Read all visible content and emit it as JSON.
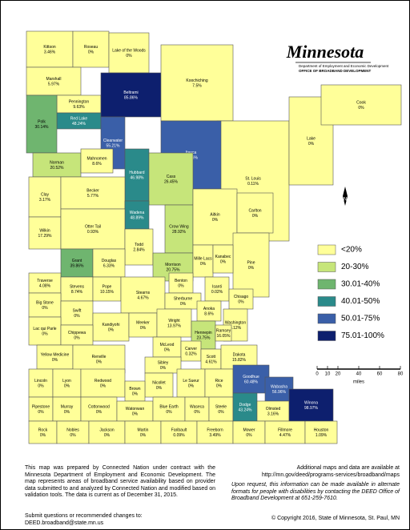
{
  "header": {
    "title": "Minnesota",
    "department": "Department of Employment and Economic Development",
    "office": "OFFICE OF BROADBAND DEVELOPMENT"
  },
  "counties": [
    {
      "name": "Kittson",
      "value": "3.46%",
      "color": "#ffff99"
    },
    {
      "name": "Roseau",
      "value": "0%",
      "color": "#ffff99"
    },
    {
      "name": "Lake of the Woods",
      "value": "0%",
      "color": "#ffff99"
    },
    {
      "name": "Marshall",
      "value": "5.97%",
      "color": "#ffff99"
    },
    {
      "name": "Pennington",
      "value": "9.63%",
      "color": "#ffff99"
    },
    {
      "name": "Red Lake",
      "value": "48.24%",
      "color": "#2a8a8a"
    },
    {
      "name": "Polk",
      "value": "30.14%",
      "color": "#6fb56f"
    },
    {
      "name": "Beltrami",
      "value": "85.86%",
      "color": "#0d1f6e"
    },
    {
      "name": "Clearwater",
      "value": "55.21%",
      "color": "#3a5fa8"
    },
    {
      "name": "Koochiching",
      "value": "7.5%",
      "color": "#ffff99"
    },
    {
      "name": "St. Louis",
      "value": "0.11%",
      "color": "#ffff99"
    },
    {
      "name": "Lake",
      "value": "0%",
      "color": "#ffff99"
    },
    {
      "name": "Cook",
      "value": "0%",
      "color": "#ffff99"
    },
    {
      "name": "Itasca",
      "value": "58.96%",
      "color": "#3a5fa8"
    },
    {
      "name": "Norman",
      "value": "20.52%",
      "color": "#c6e57a"
    },
    {
      "name": "Mahnomen",
      "value": "8.6%",
      "color": "#ffff99"
    },
    {
      "name": "Hubbard",
      "value": "46.98%",
      "color": "#2a8a8a"
    },
    {
      "name": "Cass",
      "value": "26.45%",
      "color": "#c6e57a"
    },
    {
      "name": "Clay",
      "value": "3.17%",
      "color": "#ffff99"
    },
    {
      "name": "Becker",
      "value": "5.77%",
      "color": "#ffff99"
    },
    {
      "name": "Wadena",
      "value": "48.89%",
      "color": "#2a8a8a"
    },
    {
      "name": "Crow Wing",
      "value": "28.92%",
      "color": "#c6e57a"
    },
    {
      "name": "Aitkin",
      "value": "0%",
      "color": "#ffff99"
    },
    {
      "name": "Carlton",
      "value": "0%",
      "color": "#ffff99"
    },
    {
      "name": "Wilkin",
      "value": "17.29%",
      "color": "#ffff99"
    },
    {
      "name": "Otter Tail",
      "value": "0.93%",
      "color": "#ffff99"
    },
    {
      "name": "Todd",
      "value": "2.84%",
      "color": "#ffff99"
    },
    {
      "name": "Morrison",
      "value": "20.75%",
      "color": "#c6e57a"
    },
    {
      "name": "Pine",
      "value": "0%",
      "color": "#ffff99"
    },
    {
      "name": "Grant",
      "value": "39.86%",
      "color": "#6fb56f"
    },
    {
      "name": "Douglas",
      "value": "6.33%",
      "color": "#ffff99"
    },
    {
      "name": "Mille Lacs",
      "value": "0%",
      "color": "#ffff99"
    },
    {
      "name": "Kanabec",
      "value": "0%",
      "color": "#ffff99"
    },
    {
      "name": "Traverse",
      "value": "4.08%",
      "color": "#ffff99"
    },
    {
      "name": "Stevens",
      "value": "8.74%",
      "color": "#ffff99"
    },
    {
      "name": "Pope",
      "value": "10.15%",
      "color": "#ffff99"
    },
    {
      "name": "Stearns",
      "value": "4.67%",
      "color": "#ffff99"
    },
    {
      "name": "Benton",
      "value": "0%",
      "color": "#ffff99"
    },
    {
      "name": "Isanti",
      "value": "0.02%",
      "color": "#ffff99"
    },
    {
      "name": "Chisago",
      "value": "0%",
      "color": "#ffff99"
    },
    {
      "name": "Big Stone",
      "value": "0%",
      "color": "#ffff99"
    },
    {
      "name": "Swift",
      "value": "0%",
      "color": "#ffff99"
    },
    {
      "name": "Sherburne",
      "value": "0%",
      "color": "#ffff99"
    },
    {
      "name": "Anoka",
      "value": "8.6%",
      "color": "#ffff99"
    },
    {
      "name": "Washington",
      "value": "6.12%",
      "color": "#ffff99"
    },
    {
      "name": "Kandiyohi",
      "value": "0%",
      "color": "#ffff99"
    },
    {
      "name": "Meeker",
      "value": "0%",
      "color": "#ffff99"
    },
    {
      "name": "Wright",
      "value": "13.97%",
      "color": "#ffff99"
    },
    {
      "name": "Hennepin",
      "value": "23.75%",
      "color": "#c6e57a"
    },
    {
      "name": "Ramsey",
      "value": "16.05%",
      "color": "#ffff99"
    },
    {
      "name": "Lac qui Parle",
      "value": "0%",
      "color": "#ffff99"
    },
    {
      "name": "Chippewa",
      "value": "0%",
      "color": "#ffff99"
    },
    {
      "name": "McLeod",
      "value": "0%",
      "color": "#ffff99"
    },
    {
      "name": "Carver",
      "value": "0.32%",
      "color": "#ffff99"
    },
    {
      "name": "Yellow Medicine",
      "value": "0%",
      "color": "#ffff99"
    },
    {
      "name": "Renville",
      "value": "0%",
      "color": "#ffff99"
    },
    {
      "name": "Scott",
      "value": "4.61%",
      "color": "#ffff99"
    },
    {
      "name": "Dakota",
      "value": "15.82%",
      "color": "#ffff99"
    },
    {
      "name": "Sibley",
      "value": "0%",
      "color": "#ffff99"
    },
    {
      "name": "Lincoln",
      "value": "0%",
      "color": "#ffff99"
    },
    {
      "name": "Lyon",
      "value": "0%",
      "color": "#ffff99"
    },
    {
      "name": "Redwood",
      "value": "0%",
      "color": "#ffff99"
    },
    {
      "name": "Nicollet",
      "value": "0%",
      "color": "#ffff99"
    },
    {
      "name": "Le Sueur",
      "value": "0%",
      "color": "#ffff99"
    },
    {
      "name": "Rice",
      "value": "0%",
      "color": "#ffff99"
    },
    {
      "name": "Goodhue",
      "value": "60.48%",
      "color": "#3a5fa8"
    },
    {
      "name": "Wabasha",
      "value": "56.96%",
      "color": "#3a5fa8"
    },
    {
      "name": "Brown",
      "value": "0%",
      "color": "#ffff99"
    },
    {
      "name": "Pipestone",
      "value": "0%",
      "color": "#ffff99"
    },
    {
      "name": "Murray",
      "value": "0%",
      "color": "#ffff99"
    },
    {
      "name": "Cottonwood",
      "value": "0%",
      "color": "#ffff99"
    },
    {
      "name": "Watonwan",
      "value": "0%",
      "color": "#ffff99"
    },
    {
      "name": "Blue Earth",
      "value": "0%",
      "color": "#ffff99"
    },
    {
      "name": "Waseca",
      "value": "0%",
      "color": "#ffff99"
    },
    {
      "name": "Steele",
      "value": "0%",
      "color": "#ffff99"
    },
    {
      "name": "Dodge",
      "value": "43.24%",
      "color": "#2a8a8a"
    },
    {
      "name": "Olmsted",
      "value": "3.16%",
      "color": "#ffff99"
    },
    {
      "name": "Winona",
      "value": "98.97%",
      "color": "#0d1f6e"
    },
    {
      "name": "Rock",
      "value": "0%",
      "color": "#ffff99"
    },
    {
      "name": "Nobles",
      "value": "0%",
      "color": "#ffff99"
    },
    {
      "name": "Jackson",
      "value": "0%",
      "color": "#ffff99"
    },
    {
      "name": "Martin",
      "value": "0%",
      "color": "#ffff99"
    },
    {
      "name": "Faribault",
      "value": "0.09%",
      "color": "#ffff99"
    },
    {
      "name": "Freeborn",
      "value": "3.49%",
      "color": "#ffff99"
    },
    {
      "name": "Mower",
      "value": "0%",
      "color": "#ffff99"
    },
    {
      "name": "Fillmore",
      "value": "4.47%",
      "color": "#ffff99"
    },
    {
      "name": "Houston",
      "value": "1.09%",
      "color": "#ffff99"
    }
  ],
  "legend": [
    {
      "label": "<20%",
      "color": "#ffff99"
    },
    {
      "label": "20-30%",
      "color": "#c6e57a"
    },
    {
      "label": "30.01-40%",
      "color": "#6fb56f"
    },
    {
      "label": "40.01-50%",
      "color": "#2a8a8a"
    },
    {
      "label": "50.01-75%",
      "color": "#3a5fa8"
    },
    {
      "label": "75.01-100%",
      "color": "#0d1f6e"
    }
  ],
  "compass": "N",
  "scale": {
    "ticks": [
      0,
      10,
      20,
      40,
      60,
      80
    ],
    "unit": "miles"
  },
  "footer": {
    "left": "This map was prepared by Connected Nation under contract with the Minnesota Department of Employment and Economic Development. The map represents areas of broadband service availability based on provider data submitted to and analyzed by Connected Nation and modified based on validation tools. The data is current as of December 31, 2015.",
    "right_1": "Additional maps and data are available at",
    "right_url": "http://mn.gov/deed/programs-services/broadband/maps",
    "right_2": "Upon request, this information can be made available in alternate formats for people with disabilities by contacting the DEED Office of Broadband Development at 651-259-7610.",
    "submit": "Submit questions or recommended changes to:",
    "email": "DEED.broadband@state.mn.us",
    "copyright": "© Copyright 2016, State of Minnesota, St. Paul, MN"
  }
}
